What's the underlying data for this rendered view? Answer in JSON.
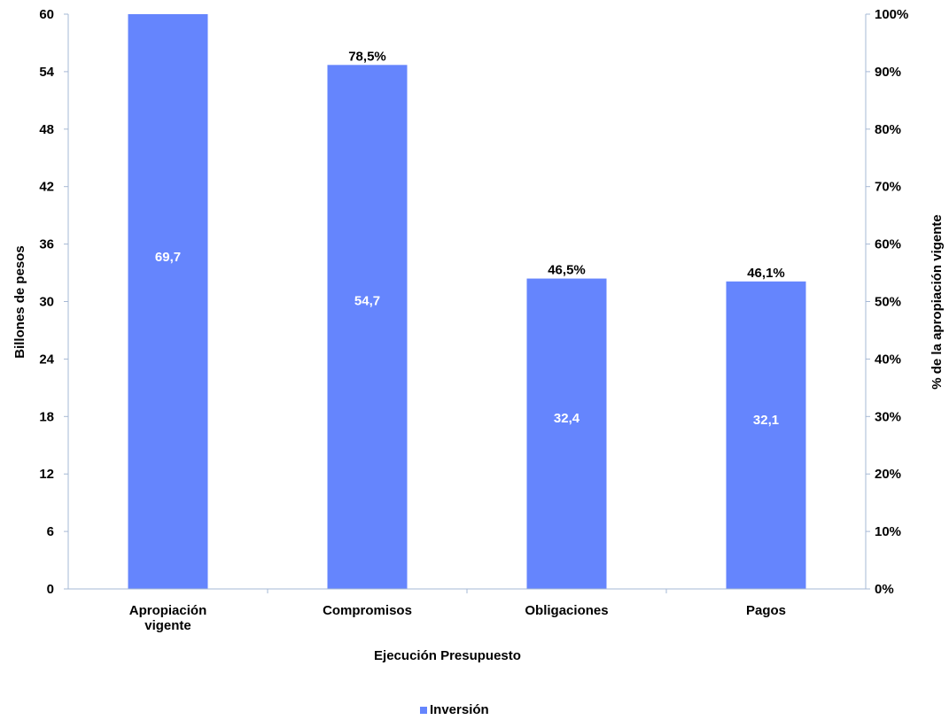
{
  "chart_data": {
    "type": "bar",
    "categories": [
      "Apropiación vigente",
      "Compromisos",
      "Obligaciones",
      "Pagos"
    ],
    "category_lines": [
      [
        "Apropiación",
        "vigente"
      ],
      [
        "Compromisos"
      ],
      [
        "Obligaciones"
      ],
      [
        "Pagos"
      ]
    ],
    "series": [
      {
        "name": "Inversión",
        "values": [
          69.7,
          54.7,
          32.4,
          32.1
        ],
        "value_labels": [
          "69,7",
          "54,7",
          "32,4",
          "32,1"
        ],
        "pct_values": [
          null,
          78.5,
          46.5,
          46.1
        ],
        "pct_labels": [
          "",
          "78,5%",
          "46,5%",
          "46,1%"
        ],
        "color": "#6585FD"
      }
    ],
    "xlabel": "Ejecución Presupuesto",
    "ylabel": "Billones de pesos",
    "y2label": "% de la apropiación vigente",
    "ylim": [
      0,
      60
    ],
    "y2lim": [
      0,
      100
    ],
    "yticks": [
      0,
      6,
      12,
      18,
      24,
      30,
      36,
      42,
      48,
      54,
      60
    ],
    "y2ticks": [
      "0%",
      "10%",
      "20%",
      "30%",
      "40%",
      "50%",
      "60%",
      "70%",
      "80%",
      "90%",
      "100%"
    ],
    "grid": false,
    "legend": "bottom",
    "axis_color": "#A6B8D4"
  }
}
